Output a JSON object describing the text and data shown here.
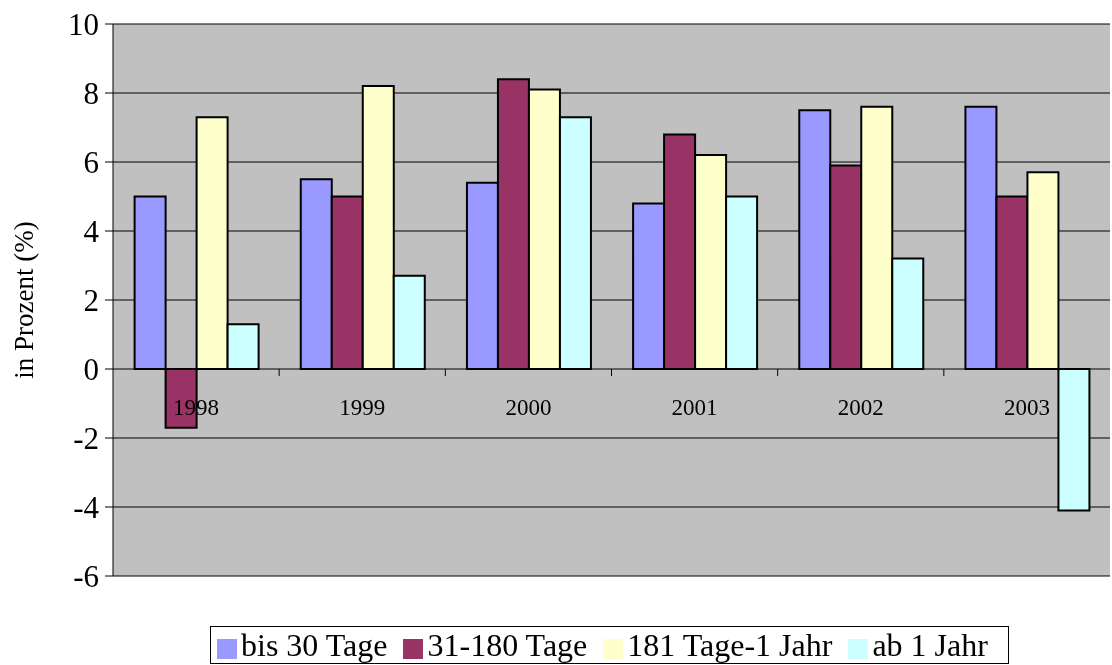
{
  "chart_data": {
    "type": "bar",
    "ylabel": "in Prozent (%)",
    "categories": [
      "1998",
      "1999",
      "2000",
      "2001",
      "2002",
      "2003"
    ],
    "series": [
      {
        "name": "bis 30 Tage",
        "color": "#9999ff",
        "values": [
          5.0,
          5.5,
          5.4,
          4.8,
          7.5,
          7.6
        ]
      },
      {
        "name": "31-180 Tage",
        "color": "#993366",
        "values": [
          -1.7,
          5.0,
          8.4,
          6.8,
          5.9,
          5.0
        ]
      },
      {
        "name": "181 Tage-1 Jahr",
        "color": "#ffffcc",
        "values": [
          7.3,
          8.2,
          8.1,
          6.2,
          7.6,
          5.7
        ]
      },
      {
        "name": "ab 1 Jahr",
        "color": "#ccffff",
        "values": [
          1.3,
          2.7,
          7.3,
          5.0,
          3.2,
          -4.1
        ]
      }
    ],
    "ylim": [
      -6,
      10
    ],
    "yticks": [
      -6,
      -4,
      -2,
      0,
      2,
      4,
      6,
      8,
      10
    ],
    "grid": "y",
    "legend": "bottom"
  }
}
